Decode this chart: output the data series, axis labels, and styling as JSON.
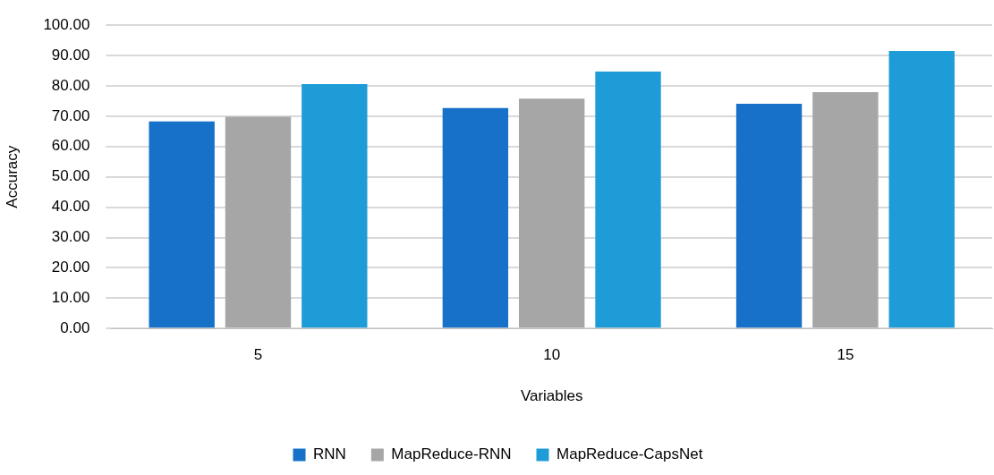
{
  "chart_data": {
    "type": "bar",
    "xlabel": "Variables",
    "ylabel": "Accuracy",
    "categories": [
      "5",
      "10",
      "15"
    ],
    "series": [
      {
        "name": "RNN",
        "color": "#1771c8",
        "values": [
          68.3,
          72.7,
          74.1
        ]
      },
      {
        "name": "MapReduce-RNN",
        "color": "#a6a6a6",
        "values": [
          69.8,
          75.8,
          77.9
        ]
      },
      {
        "name": "MapReduce-CapsNet",
        "color": "#1e9cd8",
        "values": [
          80.6,
          84.7,
          91.5
        ]
      }
    ],
    "ylim": [
      0,
      100
    ],
    "yticks": [
      {
        "value": 0,
        "label": "0.00"
      },
      {
        "value": 10,
        "label": "10.00"
      },
      {
        "value": 20,
        "label": "20.00"
      },
      {
        "value": 30,
        "label": "30.00"
      },
      {
        "value": 40,
        "label": "40.00"
      },
      {
        "value": 50,
        "label": "50.00"
      },
      {
        "value": 60,
        "label": "60.00"
      },
      {
        "value": 70,
        "label": "70.00"
      },
      {
        "value": 80,
        "label": "80.00"
      },
      {
        "value": 90,
        "label": "90.00"
      },
      {
        "value": 100,
        "label": "100.00"
      }
    ],
    "grid": "y",
    "legend": "bottom"
  }
}
